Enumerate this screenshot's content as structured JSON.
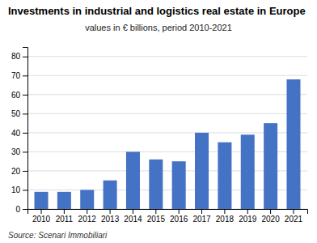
{
  "chart_data": {
    "type": "bar",
    "title": "Investments in industrial and logistics real estate in Europe",
    "subtitle": "values in € billions, period 2010-2021",
    "source": "Source: Scenari Immobiliari",
    "categories": [
      "2010",
      "2011",
      "2012",
      "2013",
      "2014",
      "2015",
      "2016",
      "2017",
      "2018",
      "2019",
      "2020",
      "2021"
    ],
    "values": [
      9,
      9,
      10,
      15,
      30,
      26,
      25,
      40,
      35,
      39,
      45,
      68
    ],
    "color": "#4472C4",
    "ylim": [
      0,
      85
    ],
    "yticks": [
      0,
      10,
      20,
      30,
      40,
      50,
      60,
      70,
      80
    ],
    "grid": true
  }
}
